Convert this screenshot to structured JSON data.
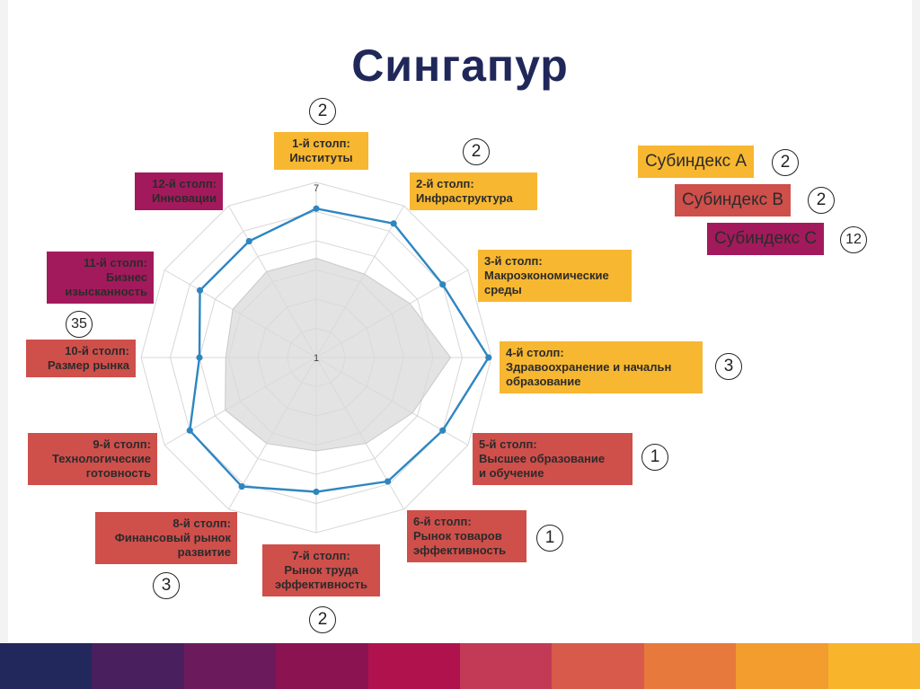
{
  "title": "Сингапур",
  "chart_data": {
    "type": "radar",
    "scale_labels": {
      "max": "7",
      "min": "1"
    },
    "range": [
      1,
      7
    ],
    "pillars": [
      {
        "label": "1-й столп:\nИнституты",
        "rank": "2",
        "color": "orange"
      },
      {
        "label": "2-й столп:\nИнфраструктура",
        "rank": "2",
        "color": "orange"
      },
      {
        "label": "3-й столп:\nМакроэкономические\nсреды",
        "rank": "",
        "color": "orange"
      },
      {
        "label": "4-й столп:\nЗдравоохранение и начальн\nобразование",
        "rank": "3",
        "color": "orange"
      },
      {
        "label": "5-й столп:\nВысшее образование\nи обучение",
        "rank": "1",
        "color": "red"
      },
      {
        "label": "6-й столп:\nРынок товаров\nэффективность",
        "rank": "1",
        "color": "red"
      },
      {
        "label": "7-й столп:\nРынок труда\nэффективность",
        "rank": "2",
        "color": "red"
      },
      {
        "label": "8-й столп:\nФинансовый рынок\nразвитие",
        "rank": "3",
        "color": "red"
      },
      {
        "label": "9-й столп:\nТехнологические\nготовность",
        "rank": "",
        "color": "red"
      },
      {
        "label": "10-й столп:\nРазмер рынка",
        "rank": "35",
        "color": "red"
      },
      {
        "label": "11-й столп:\nБизнес\nизысканность",
        "rank": "",
        "color": "magenta"
      },
      {
        "label": "12-й столп:\nИнновации",
        "rank": "",
        "color": "magenta"
      }
    ],
    "series": [
      {
        "values": [
          6.1,
          6.3,
          6.0,
          6.9,
          6.0,
          5.9,
          5.6,
          6.1,
          6.0,
          5.0,
          5.6,
          5.6
        ],
        "color": "#2e86c1"
      },
      {
        "values": [
          4.4,
          4.3,
          4.7,
          5.6,
          4.8,
          4.4,
          4.2,
          4.4,
          4.6,
          4.1,
          4.3,
          4.4
        ],
        "color": "#bfbfbf"
      }
    ]
  },
  "subindices": [
    {
      "label": "Субиндекс A",
      "rank": "2",
      "color": "orange"
    },
    {
      "label": "Субиндекс B",
      "rank": "2",
      "color": "red"
    },
    {
      "label": "Субиндекс C",
      "rank": "12",
      "color": "magenta"
    }
  ],
  "colors": {
    "orange": "#f7b731",
    "red": "#cf4f4b",
    "magenta": "#a21a5c",
    "title": "#20285a",
    "grid": "#d7d7d7",
    "stripes": [
      "#22275c",
      "#4a1f5e",
      "#6b1a5b",
      "#8c1351",
      "#b0124e",
      "#c23a55",
      "#d85a4a",
      "#e8793d",
      "#f29d2e",
      "#f8b52b"
    ]
  }
}
